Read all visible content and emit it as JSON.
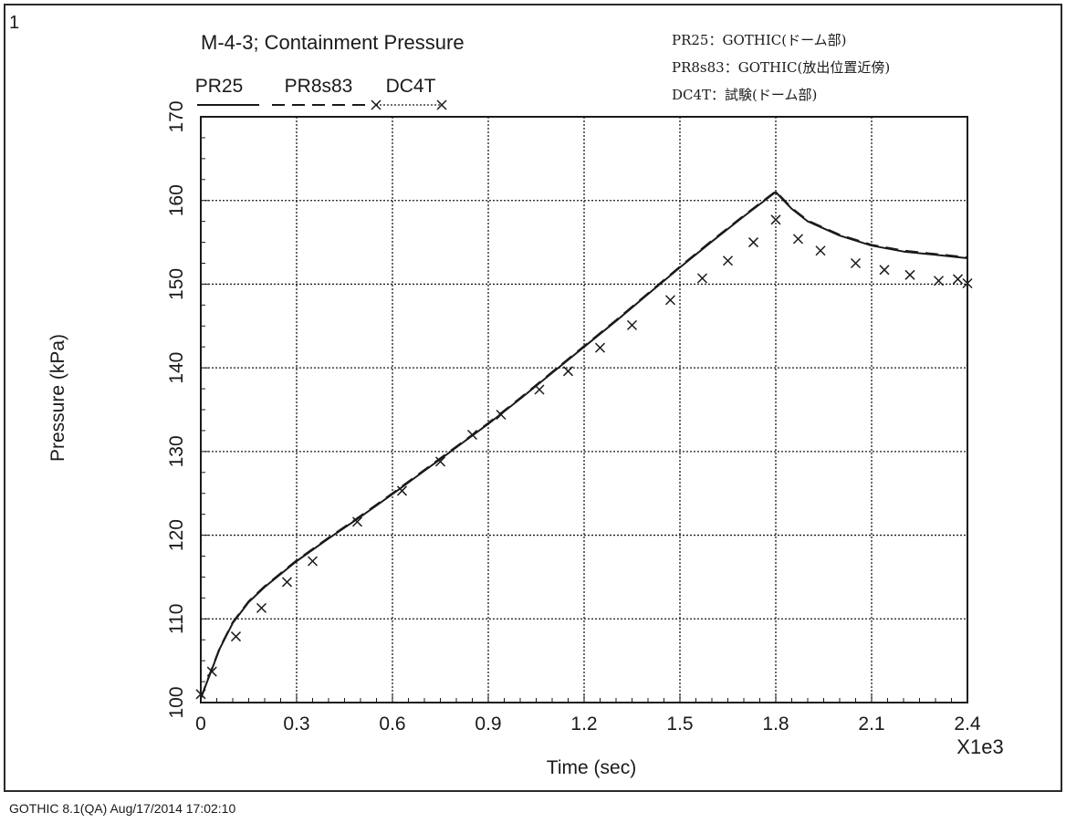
{
  "plot_number": "1",
  "title": "M-4-3; Containment Pressure",
  "notes": [
    "PR25：GOTHIC(ドーム部)",
    "PR8s83：GOTHIC(放出位置近傍)",
    "DC4T：試験(ドーム部)"
  ],
  "footer": "GOTHIC 8.1(QA) Aug/17/2014 17:02:10",
  "colors": {
    "ink": "#1a1a1a",
    "background": "#ffffff"
  },
  "chart_data": {
    "type": "line",
    "title": "M-4-3; Containment Pressure",
    "xlabel": "Time (sec)",
    "ylabel": "Pressure (kPa)",
    "x_multiplier": "X1e3",
    "xlim": [
      0,
      2.4
    ],
    "ylim": [
      100,
      170
    ],
    "xticks": [
      "0",
      "0.3",
      "0.6",
      "0.9",
      "1.2",
      "1.5",
      "1.8",
      "2.1",
      "2.4"
    ],
    "yticks": [
      "100",
      "110",
      "120",
      "130",
      "140",
      "150",
      "160",
      "170"
    ],
    "grid": true,
    "legend_position": "top-left",
    "series": [
      {
        "name": "PR25",
        "style": "solid",
        "x": [
          0,
          0.03,
          0.06,
          0.1,
          0.15,
          0.2,
          0.3,
          0.4,
          0.5,
          0.6,
          0.7,
          0.8,
          0.9,
          1.0,
          1.1,
          1.2,
          1.3,
          1.4,
          1.5,
          1.6,
          1.7,
          1.8,
          1.85,
          1.9,
          2.0,
          2.1,
          2.2,
          2.3,
          2.4
        ],
        "y": [
          100.5,
          103.5,
          106.5,
          109.5,
          112.0,
          113.8,
          116.9,
          119.6,
          122.2,
          124.9,
          127.7,
          130.5,
          133.3,
          136.3,
          139.4,
          142.5,
          145.6,
          148.8,
          152.0,
          155.1,
          158.1,
          161.0,
          159.0,
          157.5,
          155.8,
          154.6,
          153.9,
          153.5,
          153.1
        ]
      },
      {
        "name": "PR8s83",
        "style": "dashed",
        "x": [
          0,
          0.03,
          0.06,
          0.1,
          0.15,
          0.2,
          0.3,
          0.4,
          0.5,
          0.6,
          0.7,
          0.8,
          0.9,
          1.0,
          1.1,
          1.2,
          1.3,
          1.4,
          1.5,
          1.6,
          1.7,
          1.8,
          1.85,
          1.9,
          2.0,
          2.1,
          2.2,
          2.3,
          2.4
        ],
        "y": [
          100.5,
          103.6,
          106.6,
          109.6,
          112.1,
          113.9,
          117.0,
          119.7,
          122.3,
          125.0,
          127.8,
          130.6,
          133.4,
          136.4,
          139.5,
          142.6,
          145.7,
          148.9,
          152.1,
          155.2,
          158.2,
          161.1,
          159.1,
          157.6,
          155.9,
          154.7,
          154.0,
          153.6,
          153.2
        ]
      },
      {
        "name": "DC4T",
        "style": "markers",
        "x": [
          0,
          0.035,
          0.11,
          0.19,
          0.27,
          0.35,
          0.49,
          0.63,
          0.75,
          0.85,
          0.94,
          1.06,
          1.15,
          1.25,
          1.35,
          1.47,
          1.57,
          1.65,
          1.73,
          1.8,
          1.87,
          1.94,
          2.05,
          2.14,
          2.22,
          2.31,
          2.37,
          2.4
        ],
        "y": [
          101.0,
          103.7,
          107.9,
          111.3,
          114.4,
          116.9,
          121.6,
          125.3,
          128.8,
          132.0,
          134.4,
          137.4,
          139.6,
          142.4,
          145.1,
          148.1,
          150.7,
          152.8,
          155.0,
          157.7,
          155.4,
          154.0,
          152.5,
          151.7,
          151.1,
          150.4,
          150.6,
          150.1
        ]
      }
    ]
  }
}
